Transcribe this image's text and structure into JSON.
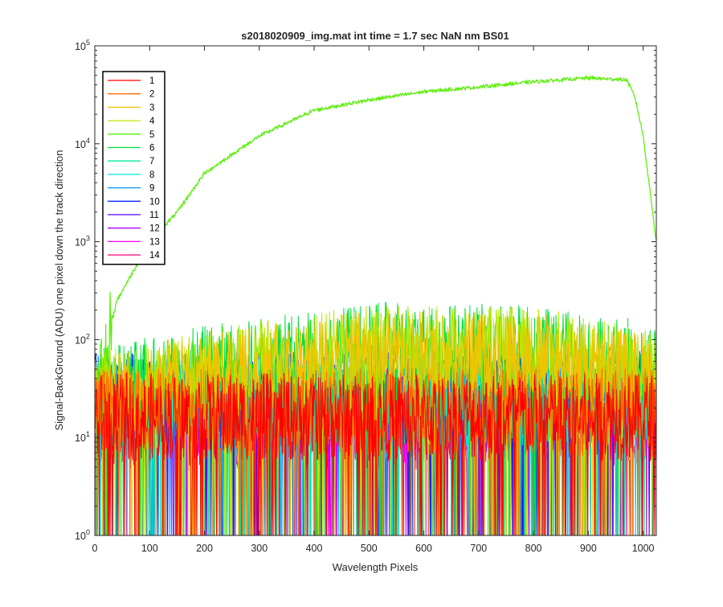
{
  "chart_data": {
    "type": "line",
    "title": "s2018020909_img.mat int time = 1.7 sec  NaN nm BS01",
    "xlabel": "Wavelength Pixels",
    "ylabel": "Signal-BackGround (ADU) one pixel down the track direction",
    "xlim": [
      0,
      1024
    ],
    "ylim": [
      1,
      100000
    ],
    "yscale": "log",
    "x_ticks": [
      "0",
      "100",
      "200",
      "300",
      "400",
      "500",
      "600",
      "700",
      "800",
      "900",
      "1000"
    ],
    "x_tick_values": [
      0,
      100,
      200,
      300,
      400,
      500,
      600,
      700,
      800,
      900,
      1000
    ],
    "y_ticks": [
      {
        "base": "10",
        "exp": "0",
        "value": 1
      },
      {
        "base": "10",
        "exp": "1",
        "value": 10
      },
      {
        "base": "10",
        "exp": "2",
        "value": 100
      },
      {
        "base": "10",
        "exp": "3",
        "value": 1000
      },
      {
        "base": "10",
        "exp": "4",
        "value": 10000
      },
      {
        "base": "10",
        "exp": "5",
        "value": 100000
      }
    ],
    "grid": false,
    "legend_position": "top-left",
    "series": [
      {
        "name": "1",
        "color": "#ff0000",
        "envelope": [
          [
            0,
            18
          ],
          [
            1024,
            18
          ]
        ]
      },
      {
        "name": "2",
        "color": "#ff6a00",
        "envelope": [
          [
            0,
            20
          ],
          [
            1024,
            20
          ]
        ]
      },
      {
        "name": "3",
        "color": "#f2c200",
        "envelope": [
          [
            0,
            28
          ],
          [
            200,
            45
          ],
          [
            500,
            80
          ],
          [
            800,
            75
          ],
          [
            1024,
            45
          ]
        ]
      },
      {
        "name": "4",
        "color": "#b8e800",
        "envelope": [
          [
            0,
            30
          ],
          [
            200,
            50
          ],
          [
            500,
            90
          ],
          [
            800,
            85
          ],
          [
            1024,
            50
          ]
        ]
      },
      {
        "name": "5",
        "color": "#55ee00",
        "envelope": [
          [
            0,
            32
          ],
          [
            20,
            80
          ],
          [
            40,
            250
          ],
          [
            100,
            1000
          ],
          [
            150,
            2000
          ],
          [
            200,
            5000
          ],
          [
            300,
            12000
          ],
          [
            400,
            22000
          ],
          [
            500,
            28000
          ],
          [
            600,
            34000
          ],
          [
            700,
            38000
          ],
          [
            800,
            43000
          ],
          [
            900,
            47000
          ],
          [
            970,
            45000
          ],
          [
            985,
            30000
          ],
          [
            1000,
            12000
          ],
          [
            1024,
            1000
          ]
        ]
      },
      {
        "name": "6",
        "color": "#00e040",
        "envelope": [
          [
            0,
            32
          ],
          [
            200,
            55
          ],
          [
            500,
            95
          ],
          [
            800,
            90
          ],
          [
            1024,
            60
          ]
        ]
      },
      {
        "name": "7",
        "color": "#00e8a0",
        "envelope": [
          [
            0,
            25
          ],
          [
            1024,
            28
          ]
        ]
      },
      {
        "name": "8",
        "color": "#00e8e8",
        "envelope": [
          [
            0,
            25
          ],
          [
            1024,
            25
          ]
        ]
      },
      {
        "name": "9",
        "color": "#0096ff",
        "envelope": [
          [
            0,
            28
          ],
          [
            1024,
            30
          ]
        ]
      },
      {
        "name": "10",
        "color": "#0a28ff",
        "envelope": [
          [
            0,
            30
          ],
          [
            1024,
            32
          ]
        ]
      },
      {
        "name": "11",
        "color": "#5000ff",
        "envelope": [
          [
            0,
            25
          ],
          [
            1024,
            28
          ]
        ]
      },
      {
        "name": "12",
        "color": "#b400ff",
        "envelope": [
          [
            0,
            20
          ],
          [
            1024,
            22
          ]
        ]
      },
      {
        "name": "13",
        "color": "#ff00e6",
        "envelope": [
          [
            0,
            16
          ],
          [
            1024,
            18
          ]
        ]
      },
      {
        "name": "14",
        "color": "#ff007a",
        "envelope": [
          [
            0,
            14
          ],
          [
            1024,
            15
          ]
        ]
      }
    ]
  }
}
